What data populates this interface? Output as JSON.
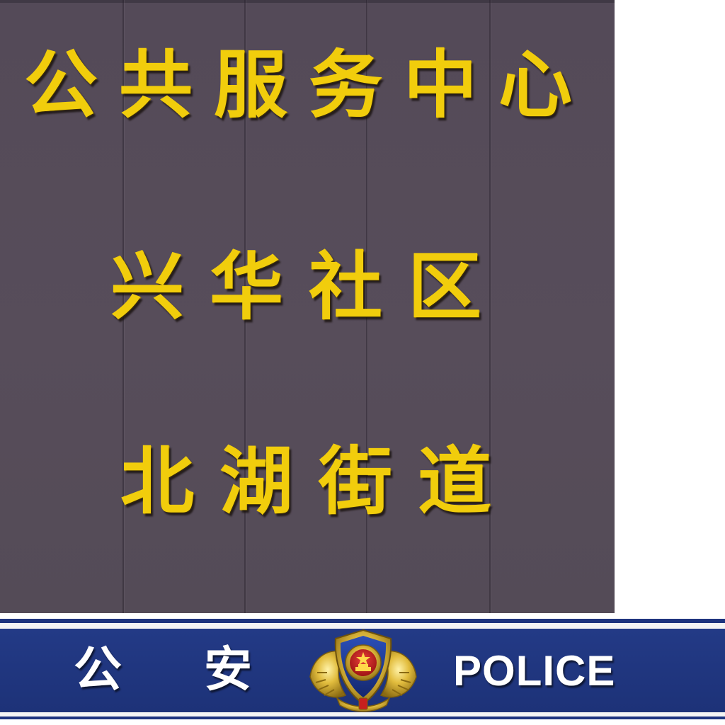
{
  "sign": {
    "line1": "公共服务中心",
    "line2": "兴华社区",
    "line3": "北湖街道"
  },
  "police_bar": {
    "cn_left": "公",
    "cn_right": "安",
    "en": "POLICE"
  },
  "icons": {
    "emblem": "police-emblem-icon"
  },
  "colors": {
    "board": "#564c59",
    "sign_text": "#f1cd0c",
    "police_blue": "#1e347e",
    "stripe": "#f4f4f4",
    "emblem_gold": "#d9b53a",
    "emblem_red": "#c8201e"
  }
}
